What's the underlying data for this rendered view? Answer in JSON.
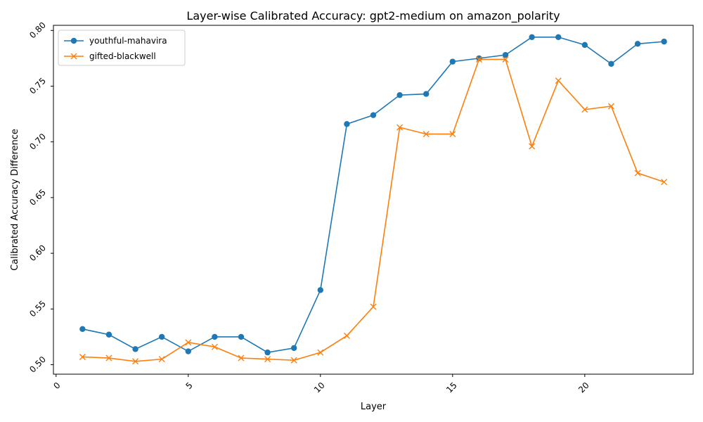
{
  "chart_data": {
    "type": "line",
    "title": "Layer-wise Calibrated Accuracy: gpt2-medium on amazon_polarity",
    "xlabel": "Layer",
    "ylabel": "Calibrated Accuracy Difference",
    "xlim": [
      -0.1,
      24.1
    ],
    "ylim": [
      0.4915,
      0.8046
    ],
    "xticks": [
      0,
      5,
      10,
      15,
      20
    ],
    "yticks": [
      0.5,
      0.55,
      0.6,
      0.65,
      0.7,
      0.75,
      0.8
    ],
    "ytick_labels": [
      "0.50",
      "0.55",
      "0.60",
      "0.65",
      "0.70",
      "0.75",
      "0.80"
    ],
    "grid": false,
    "legend_position": "upper-left",
    "x": [
      1,
      2,
      3,
      4,
      5,
      6,
      7,
      8,
      9,
      10,
      11,
      12,
      13,
      14,
      15,
      16,
      17,
      18,
      19,
      20,
      21,
      22,
      23
    ],
    "series": [
      {
        "name": "youthful-mahavira",
        "color": "#1f77b4",
        "marker": "circle",
        "values": [
          0.532,
          0.527,
          0.514,
          0.525,
          0.512,
          0.525,
          0.525,
          0.511,
          0.515,
          0.567,
          0.716,
          0.724,
          0.742,
          0.743,
          0.772,
          0.775,
          0.778,
          0.794,
          0.794,
          0.787,
          0.77,
          0.788,
          0.79
        ]
      },
      {
        "name": "gifted-blackwell",
        "color": "#ff7f0e",
        "marker": "x",
        "values": [
          0.507,
          0.506,
          0.503,
          0.505,
          0.52,
          0.516,
          0.506,
          0.505,
          0.504,
          0.511,
          0.526,
          0.552,
          0.713,
          0.707,
          0.707,
          0.774,
          0.774,
          0.696,
          0.755,
          0.729,
          0.732,
          0.672,
          0.664
        ]
      }
    ]
  }
}
